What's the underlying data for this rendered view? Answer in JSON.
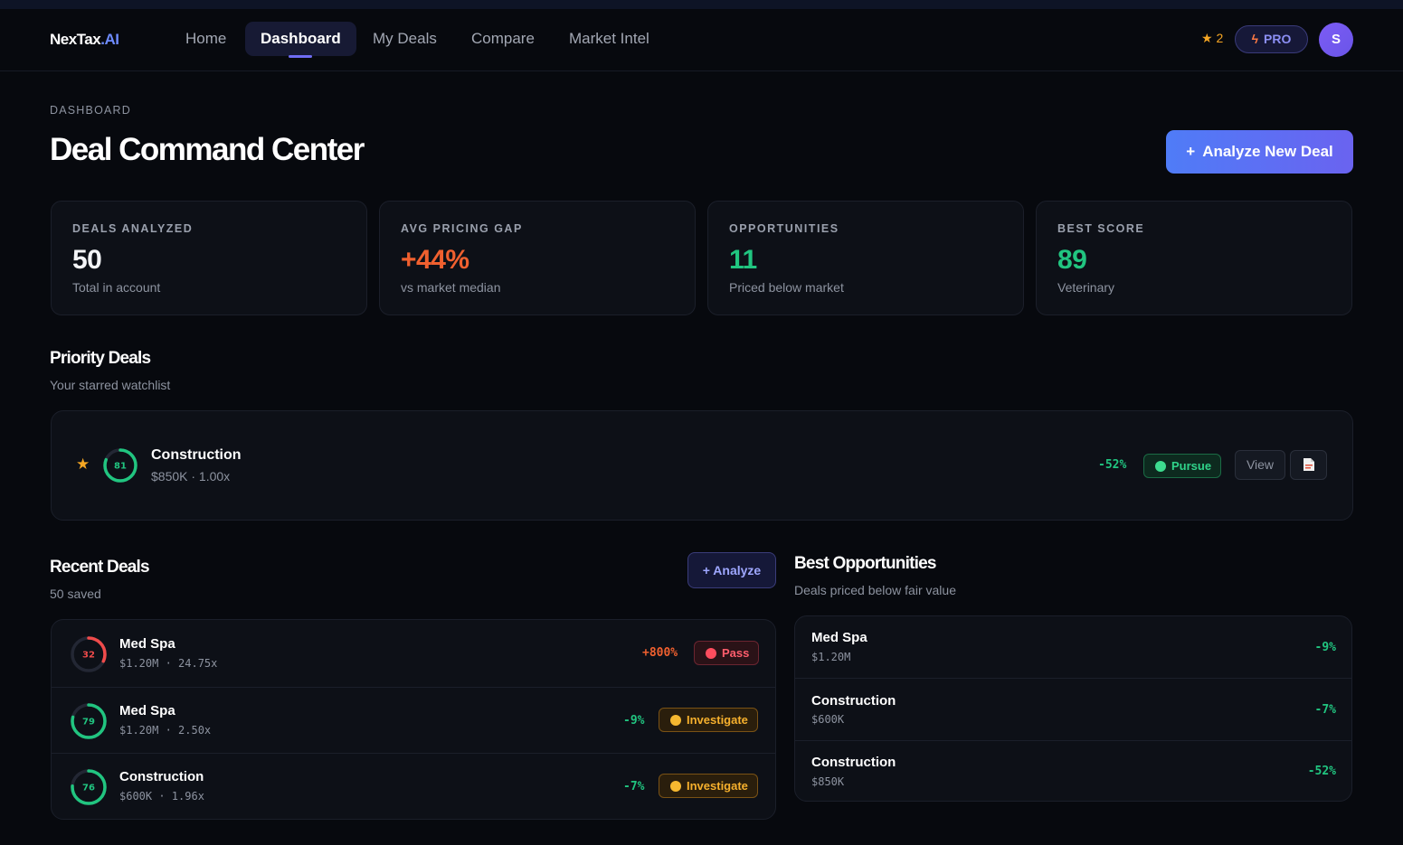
{
  "brand": {
    "name": "NexTax",
    "suffix": ".AI"
  },
  "nav": {
    "items": [
      "Home",
      "Dashboard",
      "My Deals",
      "Compare",
      "Market Intel"
    ],
    "active": "Dashboard",
    "star_count": "2",
    "star_icon": "star-icon",
    "plan_label": "PRO",
    "avatar_initial": "S"
  },
  "header": {
    "breadcrumb": "DASHBOARD",
    "title": "Deal Command Center",
    "new_deal_label": "Analyze New Deal"
  },
  "stats": [
    {
      "label": "DEALS ANALYZED",
      "value": "50",
      "sub": "Total in account",
      "color": "#f3f4f7"
    },
    {
      "label": "AVG PRICING GAP",
      "value": "+44%",
      "sub": "vs market median",
      "color": "#f0602f"
    },
    {
      "label": "OPPORTUNITIES",
      "value": "11",
      "sub": "Priced below market",
      "color": "#21c580"
    },
    {
      "label": "BEST SCORE",
      "value": "89",
      "sub": "Veterinary",
      "color": "#21c580"
    }
  ],
  "priority": {
    "title": "Priority Deals",
    "subtitle": "Your starred watchlist",
    "deal": {
      "score": 81,
      "name": "Construction",
      "meta": "$850K · 1.00x",
      "gap": "-52%",
      "verdict": "Pursue",
      "view_label": "View",
      "report_icon": "document-icon"
    }
  },
  "recent": {
    "title": "Recent Deals",
    "subtitle": "50 saved",
    "analyze_label": "+ Analyze",
    "deals": [
      {
        "score": 32,
        "name": "Med Spa",
        "meta": "$1.20M · 24.75x",
        "gap": "+800%",
        "verdict": "Pass",
        "verdict_type": "pass"
      },
      {
        "score": 79,
        "name": "Med Spa",
        "meta": "$1.20M · 2.50x",
        "gap": "-9%",
        "verdict": "Investigate",
        "verdict_type": "inv"
      },
      {
        "score": 76,
        "name": "Construction",
        "meta": "$600K · 1.96x",
        "gap": "-7%",
        "verdict": "Investigate",
        "verdict_type": "inv"
      }
    ]
  },
  "best": {
    "title": "Best Opportunities",
    "subtitle": "Deals priced below fair value",
    "deals": [
      {
        "name": "Med Spa",
        "price": "$1.20M",
        "gap": "-9%"
      },
      {
        "name": "Construction",
        "price": "$600K",
        "gap": "-7%"
      },
      {
        "name": "Construction",
        "price": "$850K",
        "gap": "-52%"
      }
    ]
  }
}
